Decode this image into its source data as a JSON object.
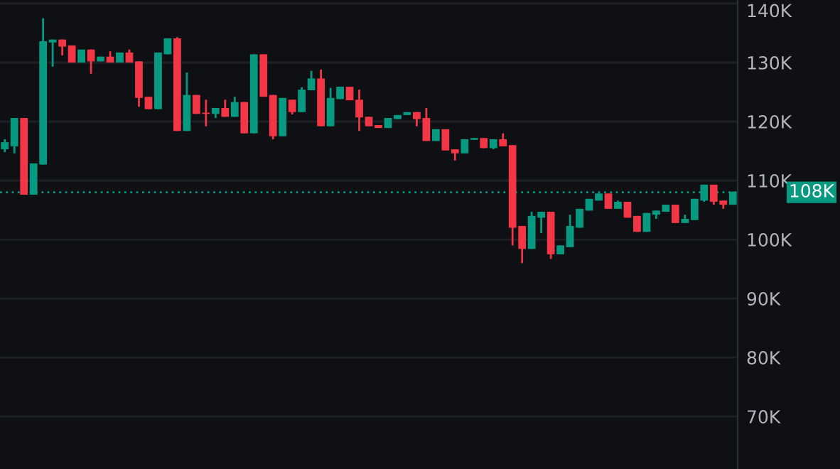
{
  "chart_data": {
    "type": "candlestick",
    "categories": [
      null,
      null,
      null,
      null,
      null,
      null,
      null,
      null,
      null,
      null,
      null,
      null,
      null,
      null,
      null,
      null,
      null,
      null,
      null,
      null,
      null,
      null,
      null,
      null,
      null,
      null,
      null,
      null,
      null,
      null,
      null,
      null,
      null,
      null,
      null,
      null,
      null,
      null,
      null,
      null,
      null,
      null,
      null,
      null,
      null,
      null,
      null,
      null,
      null,
      null,
      null,
      null,
      null,
      null,
      null,
      null,
      null,
      null,
      null,
      null,
      null,
      null,
      null,
      null,
      null,
      null,
      null,
      null,
      null,
      null,
      null,
      null,
      null,
      null,
      null,
      null,
      null
    ],
    "ohlc": [
      [
        115.3,
        117,
        114.8,
        116.5
      ],
      [
        115.8,
        120.6,
        114.6,
        120.6
      ],
      [
        120.6,
        120.6,
        107.6,
        107.6
      ],
      [
        107.6,
        112.9,
        107.6,
        112.9
      ],
      [
        112.7,
        137.5,
        112.7,
        133.6
      ],
      [
        133.4,
        133.9,
        129.3,
        133.9
      ],
      [
        133.9,
        133.9,
        131.2,
        132.7
      ],
      [
        132.9,
        132.9,
        130,
        130
      ],
      [
        130,
        132.2,
        130,
        132.2
      ],
      [
        132.2,
        132.2,
        128.1,
        130.2
      ],
      [
        130.2,
        131,
        130.2,
        131
      ],
      [
        131,
        131.9,
        130,
        130
      ],
      [
        130,
        131.7,
        130,
        131.7
      ],
      [
        131.7,
        132.2,
        130,
        130
      ],
      [
        130.2,
        130.2,
        122.5,
        124
      ],
      [
        124.2,
        124.2,
        122.1,
        122.1
      ],
      [
        122.1,
        131.7,
        122.1,
        131.7
      ],
      [
        131.4,
        134.1,
        131.4,
        134.1
      ],
      [
        134.1,
        134.3,
        118.4,
        118.4
      ],
      [
        118.4,
        128.3,
        118.4,
        124.5
      ],
      [
        124.5,
        124.5,
        121.3,
        121.3
      ],
      [
        121.5,
        123.7,
        119.2,
        121.3
      ],
      [
        121.3,
        122.3,
        120.6,
        122.3
      ],
      [
        122.3,
        123.7,
        120.8,
        120.8
      ],
      [
        120.8,
        124.2,
        120.8,
        123.3
      ],
      [
        123.3,
        123.3,
        118,
        118
      ],
      [
        118,
        131.4,
        118,
        131.4
      ],
      [
        131.4,
        131.4,
        124.2,
        124.2
      ],
      [
        124.5,
        124.5,
        117,
        117.5
      ],
      [
        117.5,
        124,
        117.5,
        124
      ],
      [
        123.7,
        123.7,
        121.2,
        121.6
      ],
      [
        121.6,
        125.8,
        121.6,
        125.4
      ],
      [
        125.3,
        128.6,
        125.3,
        127.3
      ],
      [
        127.3,
        128.8,
        119.2,
        119.2
      ],
      [
        119.2,
        125.7,
        119.2,
        124
      ],
      [
        123.8,
        125.9,
        123.8,
        125.9
      ],
      [
        125.9,
        125.9,
        123.6,
        123.6
      ],
      [
        123.7,
        125.4,
        118.4,
        120.7
      ],
      [
        120.8,
        120.8,
        119.2,
        119.2
      ],
      [
        119.4,
        119.4,
        118.9,
        118.9
      ],
      [
        118.9,
        120.6,
        118.9,
        120.6
      ],
      [
        120.4,
        121.1,
        120.4,
        121.1
      ],
      [
        121.1,
        121.6,
        121.1,
        121.6
      ],
      [
        121.6,
        121.6,
        119.2,
        120.4
      ],
      [
        120.6,
        122.3,
        116.7,
        116.7
      ],
      [
        116.7,
        118.7,
        116.7,
        118.7
      ],
      [
        118.7,
        118.7,
        115.1,
        115.1
      ],
      [
        115.3,
        115.3,
        113.4,
        114.6
      ],
      [
        114.6,
        117,
        114.6,
        117
      ],
      [
        116.9,
        117.2,
        116.9,
        117.2
      ],
      [
        117.2,
        117.2,
        115.5,
        115.5
      ],
      [
        115.5,
        117,
        115.3,
        117
      ],
      [
        117,
        118,
        115.8,
        115.8
      ],
      [
        116,
        116,
        99,
        102
      ],
      [
        102.3,
        102.3,
        96,
        98.4
      ],
      [
        98.4,
        104.7,
        98.4,
        104
      ],
      [
        103.7,
        104.7,
        101.1,
        104.7
      ],
      [
        104.7,
        104.7,
        96.7,
        97.5
      ],
      [
        97.5,
        99,
        97.5,
        99
      ],
      [
        98.7,
        104.2,
        98.7,
        102.3
      ],
      [
        102,
        105.2,
        102,
        105.2
      ],
      [
        104.9,
        106.9,
        104.9,
        106.9
      ],
      [
        106.6,
        107.8,
        106.6,
        107.8
      ],
      [
        107.8,
        107.8,
        105.2,
        105.2
      ],
      [
        105.2,
        106.6,
        105.2,
        106.4
      ],
      [
        106.4,
        106.4,
        103.7,
        103.7
      ],
      [
        104,
        104,
        101.3,
        101.3
      ],
      [
        101.3,
        104.5,
        101.3,
        104.5
      ],
      [
        104.2,
        104.9,
        103.5,
        104.9
      ],
      [
        104.7,
        105.9,
        104.7,
        105.9
      ],
      [
        105.9,
        105.9,
        102.8,
        102.8
      ],
      [
        102.8,
        104.2,
        102.8,
        103.5
      ],
      [
        103.3,
        106.9,
        103.3,
        106.9
      ],
      [
        106.6,
        109.3,
        106.4,
        109.3
      ],
      [
        109.3,
        109.3,
        105.9,
        106.4
      ],
      [
        106.6,
        106.6,
        105.2,
        105.9
      ],
      [
        105.9,
        108.1,
        105.9,
        108.1
      ]
    ],
    "colors": [
      "#089981",
      "#089981",
      "#f23645",
      "#089981",
      "#089981",
      "#089981",
      "#f23645",
      "#f23645",
      "#089981",
      "#f23645",
      "#089981",
      "#f23645",
      "#089981",
      "#f23645",
      "#f23645",
      "#f23645",
      "#089981",
      "#089981",
      "#f23645",
      "#089981",
      "#f23645",
      "#f23645",
      "#089981",
      "#f23645",
      "#089981",
      "#f23645",
      "#089981",
      "#f23645",
      "#f23645",
      "#089981",
      "#f23645",
      "#089981",
      "#089981",
      "#f23645",
      "#089981",
      "#089981",
      "#f23645",
      "#f23645",
      "#f23645",
      "#f23645",
      "#089981",
      "#089981",
      "#089981",
      "#f23645",
      "#f23645",
      "#089981",
      "#f23645",
      "#f23645",
      "#089981",
      "#089981",
      "#f23645",
      "#089981",
      "#f23645",
      "#f23645",
      "#f23645",
      "#089981",
      "#089981",
      "#f23645",
      "#089981",
      "#089981",
      "#089981",
      "#089981",
      "#089981",
      "#f23645",
      "#089981",
      "#f23645",
      "#f23645",
      "#089981",
      "#089981",
      "#089981",
      "#f23645",
      "#089981",
      "#089981",
      "#089981",
      "#f23645",
      "#f23645",
      "#089981"
    ],
    "ylim": [
      61.1,
      140.6
    ],
    "yticks": [
      {
        "value": 70,
        "label": "70K"
      },
      {
        "value": 80,
        "label": "80K"
      },
      {
        "value": 90,
        "label": "90K"
      },
      {
        "value": 100,
        "label": "100K"
      },
      {
        "value": 110,
        "label": "110K"
      },
      {
        "value": 120,
        "label": "120K"
      },
      {
        "value": 130,
        "label": "130K"
      },
      {
        "value": 140,
        "label": "140K"
      }
    ],
    "ref_lines": [
      {
        "axis": "y",
        "value": 108,
        "label": "108K",
        "color": "#089981",
        "line_style": "dotted"
      }
    ],
    "grid": "y"
  }
}
